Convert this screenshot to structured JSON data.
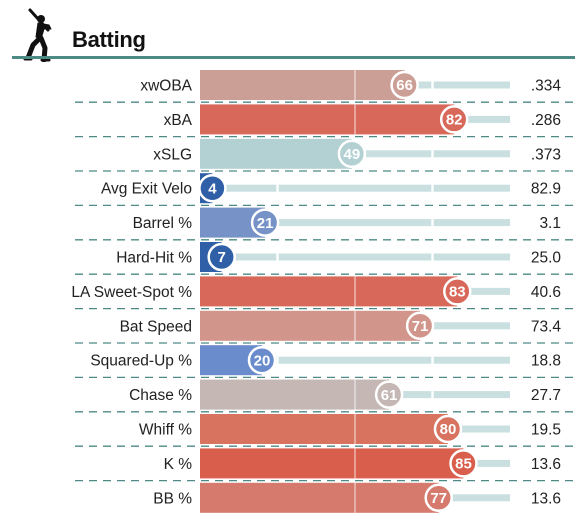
{
  "header": {
    "title": "Batting",
    "icon": "batter-icon"
  },
  "chart_data": {
    "type": "bar",
    "orientation": "horizontal",
    "title": "Batting",
    "xlim": [
      0,
      100
    ],
    "reference_lines": [
      50
    ],
    "categories": [
      "xwOBA",
      "xBA",
      "xSLG",
      "Avg Exit Velo",
      "Barrel %",
      "Hard-Hit %",
      "LA Sweet-Spot %",
      "Bat Speed",
      "Squared-Up %",
      "Chase %",
      "Whiff %",
      "K %",
      "BB %"
    ],
    "percentiles": [
      66,
      82,
      49,
      4,
      21,
      7,
      83,
      71,
      20,
      61,
      80,
      85,
      77
    ],
    "values": [
      ".334",
      ".286",
      ".373",
      "82.9",
      "3.1",
      "25.0",
      "40.6",
      "73.4",
      "18.8",
      "27.7",
      "19.5",
      "13.6",
      "13.6"
    ],
    "colors": [
      "#cc9f96",
      "#d8695a",
      "#b3d0d2",
      "#2f5fa6",
      "#7692c6",
      "#2f5fa6",
      "#d8695a",
      "#d1958b",
      "#6a8ccc",
      "#c4b7b4",
      "#d8735f",
      "#d95e4c",
      "#d57a6d"
    ],
    "track_color": "#c9dfe0"
  }
}
